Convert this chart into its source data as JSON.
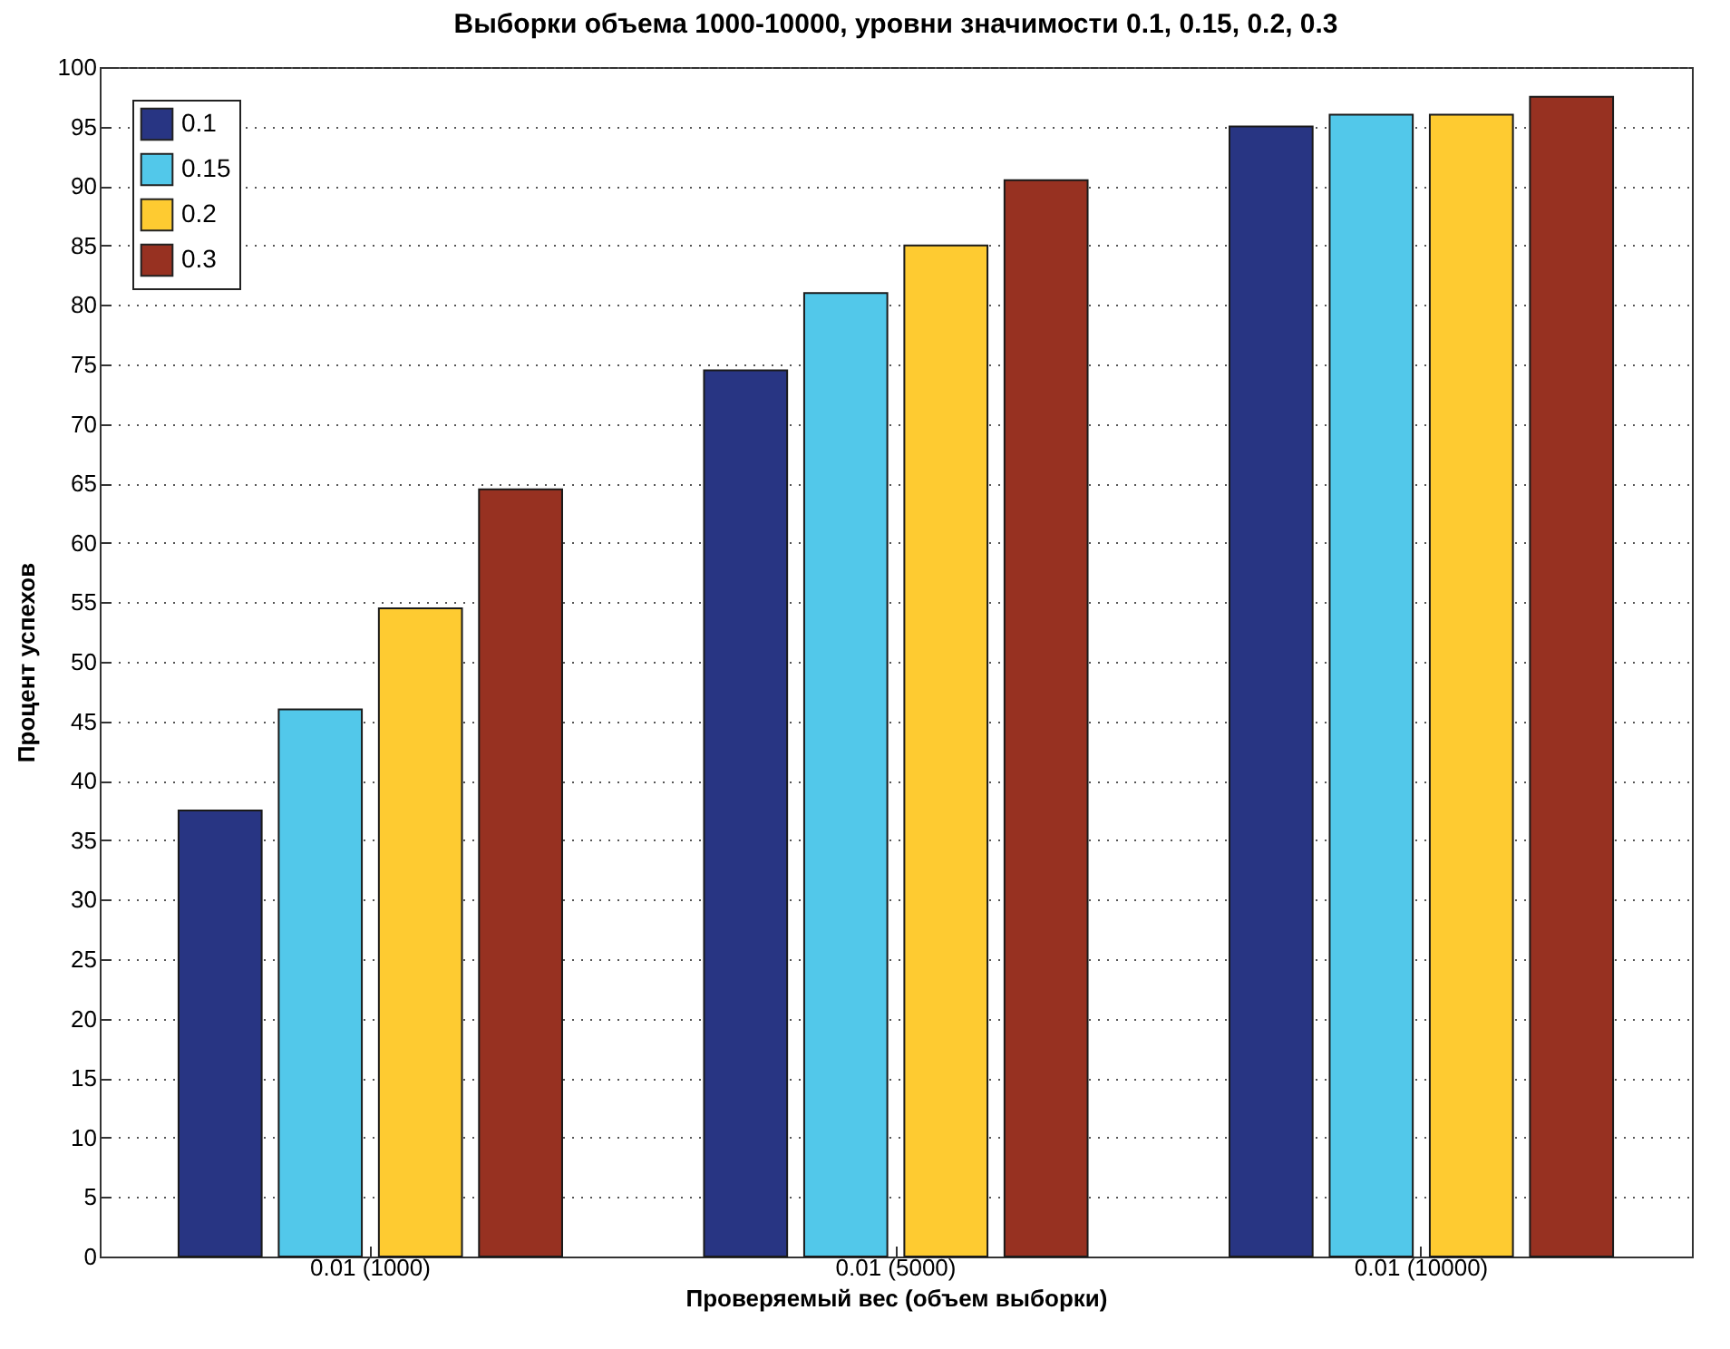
{
  "chart_data": {
    "type": "bar",
    "title": "Выборки объема 1000-10000, уровни значимости 0.1, 0.15, 0.2, 0.3",
    "xlabel": "Проверяемый вес (объем выборки)",
    "ylabel": "Процент успехов",
    "categories": [
      "0.01 (1000)",
      "0.01 (5000)",
      "0.01 (10000)"
    ],
    "series": [
      {
        "name": "0.1",
        "color": "#283583",
        "values": [
          37.5,
          74.5,
          95
        ]
      },
      {
        "name": "0.15",
        "color": "#52c8ea",
        "values": [
          46,
          81,
          96
        ]
      },
      {
        "name": "0.2",
        "color": "#fecb31",
        "values": [
          54.5,
          85,
          96
        ]
      },
      {
        "name": "0.3",
        "color": "#973121",
        "values": [
          64.5,
          90.5,
          97.5
        ]
      }
    ],
    "ylim": [
      0,
      100
    ],
    "yticks": [
      0,
      5,
      10,
      15,
      20,
      25,
      30,
      35,
      40,
      45,
      50,
      55,
      60,
      65,
      70,
      75,
      80,
      85,
      90,
      95,
      100
    ],
    "grid": "y",
    "legend": "top left"
  }
}
